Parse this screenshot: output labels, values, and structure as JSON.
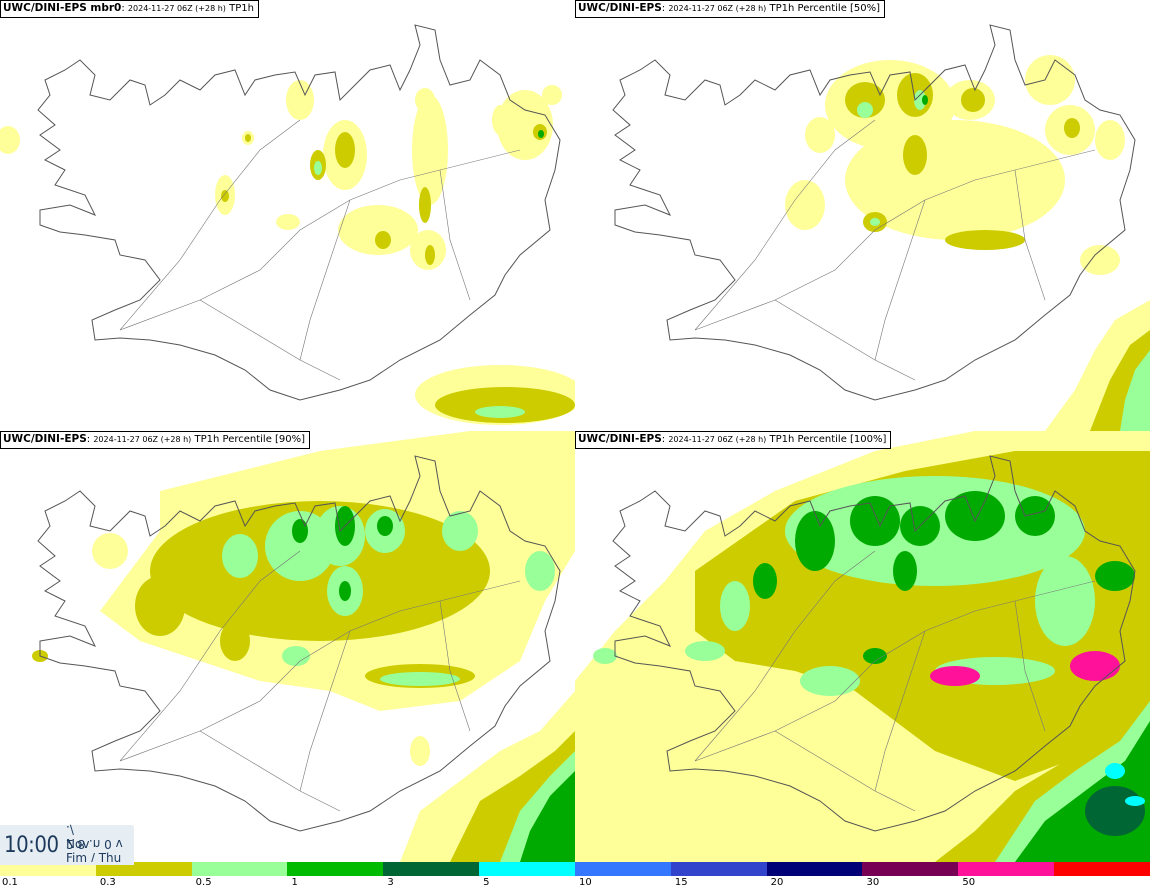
{
  "panels": [
    {
      "model": "UWC/DINI-EPS mbr0",
      "run": "2024-11-27 06Z (+28 h)",
      "variable": "TP1h"
    },
    {
      "model": "UWC/DINI-EPS",
      "run": "2024-11-27 06Z (+28 h)",
      "variable": "TP1h Percentile [50%]"
    },
    {
      "model": "UWC/DINI-EPS",
      "run": "2024-11-27 06Z (+28 h)",
      "variable": "TP1h Percentile [90%]"
    },
    {
      "model": "UWC/DINI-EPS",
      "run": "2024-11-27 06Z (+28 h)",
      "variable": "TP1h Percentile [100%]"
    }
  ],
  "clock": {
    "time": "10:00",
    "mirror_text": "2 8 .n 0 v ./",
    "month": "Nov",
    "dow": "Fim / Thu"
  },
  "colorbar": {
    "colors": [
      "#ffff99",
      "#cccc00",
      "#99ff99",
      "#00bb00",
      "#006633",
      "#00ffff",
      "#3377ff",
      "#3344cc",
      "#000077",
      "#770055",
      "#ff1199",
      "#ff0000"
    ],
    "ticks": [
      "0.1",
      "0.3",
      "0.5",
      "1",
      "3",
      "5",
      "10",
      "15",
      "20",
      "30",
      "50"
    ]
  },
  "palette": {
    "land_outline": "#555555",
    "light": "#ffff99",
    "yellow": "#cccc00",
    "lightgreen": "#99ff99",
    "green": "#00aa00",
    "darkgreen": "#006633",
    "cyan": "#00ffff"
  }
}
